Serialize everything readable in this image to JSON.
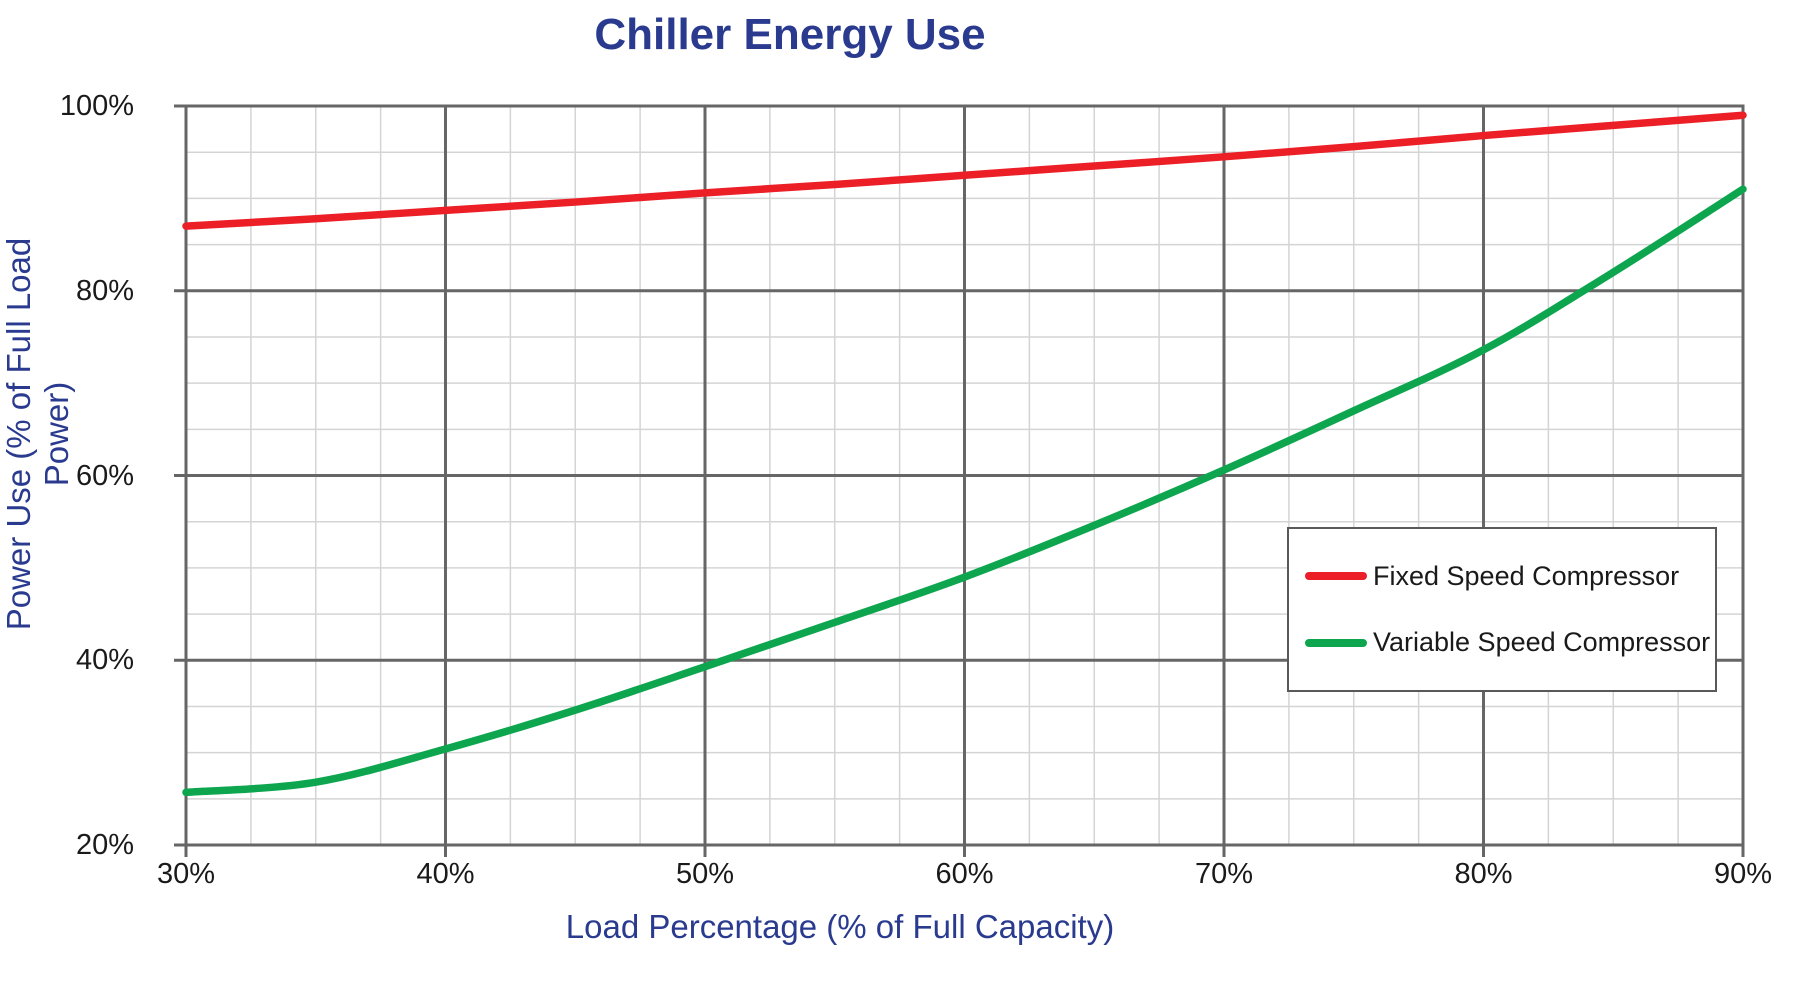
{
  "title": "Chiller Energy Use",
  "colors": {
    "title_blue": "#2A3B8F",
    "major_grid": "#666666",
    "minor_grid": "#D4D4D4",
    "tick_text": "#1A1A1A",
    "fixed_red": "#EC1F27",
    "variable_green": "#0DA64F"
  },
  "chart_data": {
    "type": "line",
    "title": "Chiller Energy Use",
    "xlabel": "Load Percentage (% of Full Capacity)",
    "ylabel": "Power Use (% of Full Load Power)",
    "x": [
      30,
      35,
      40,
      45,
      50,
      55,
      60,
      65,
      70,
      75,
      80,
      85,
      90
    ],
    "series": [
      {
        "name": "Fixed Speed Compressor",
        "color": "#EC1F27",
        "values": [
          87,
          87.8,
          88.7,
          89.6,
          90.6,
          91.5,
          92.5,
          93.5,
          94.5,
          95.6,
          96.8,
          97.9,
          99
        ]
      },
      {
        "name": "Variable Speed Compressor",
        "color": "#0DA64F",
        "values": [
          25.7,
          26.8,
          30.4,
          34.6,
          39.3,
          44.1,
          49,
          54.6,
          60.6,
          67,
          73.6,
          82,
          91
        ]
      }
    ],
    "xlim": [
      30,
      90
    ],
    "ylim": [
      20,
      100
    ],
    "x_tick_values": [
      30,
      40,
      50,
      60,
      70,
      80,
      90
    ],
    "x_tick_labels": [
      "30%",
      "40%",
      "50%",
      "60%",
      "70%",
      "80%",
      "90%"
    ],
    "y_tick_values": [
      20,
      40,
      60,
      80,
      100
    ],
    "y_tick_labels": [
      "20%",
      "40%",
      "60%",
      "80%",
      "100%"
    ],
    "x_minor_step": 2.5,
    "y_minor_step": 5,
    "grid": "major+minor",
    "legend_position": "middle-right"
  }
}
